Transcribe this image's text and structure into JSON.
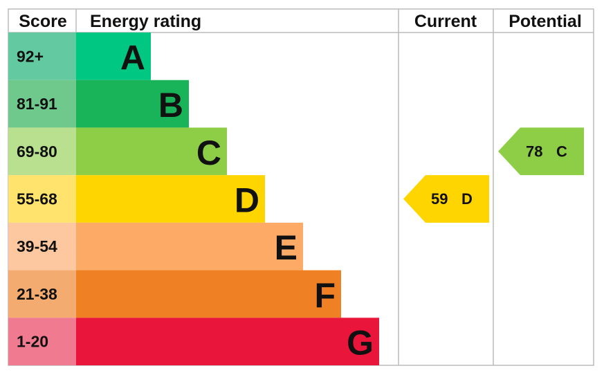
{
  "header": {
    "score": "Score",
    "rating": "Energy rating",
    "current": "Current",
    "potential": "Potential"
  },
  "bands": [
    {
      "score": "92+",
      "letter": "A",
      "color": "#00c781",
      "light": "#62c9a0"
    },
    {
      "score": "81-91",
      "letter": "B",
      "color": "#19b459",
      "light": "#70c98c"
    },
    {
      "score": "69-80",
      "letter": "C",
      "color": "#8dce46",
      "light": "#b8e08e"
    },
    {
      "score": "55-68",
      "letter": "D",
      "color": "#ffd500",
      "light": "#ffe36c"
    },
    {
      "score": "39-54",
      "letter": "E",
      "color": "#fcaa65",
      "light": "#fdc8a0"
    },
    {
      "score": "21-38",
      "letter": "F",
      "color": "#ef8023",
      "light": "#f4ab70"
    },
    {
      "score": "1-20",
      "letter": "G",
      "color": "#e9153b",
      "light": "#f07a90"
    }
  ],
  "current": {
    "value": 59,
    "rating": "D"
  },
  "potential": {
    "value": 78,
    "rating": "C"
  }
}
